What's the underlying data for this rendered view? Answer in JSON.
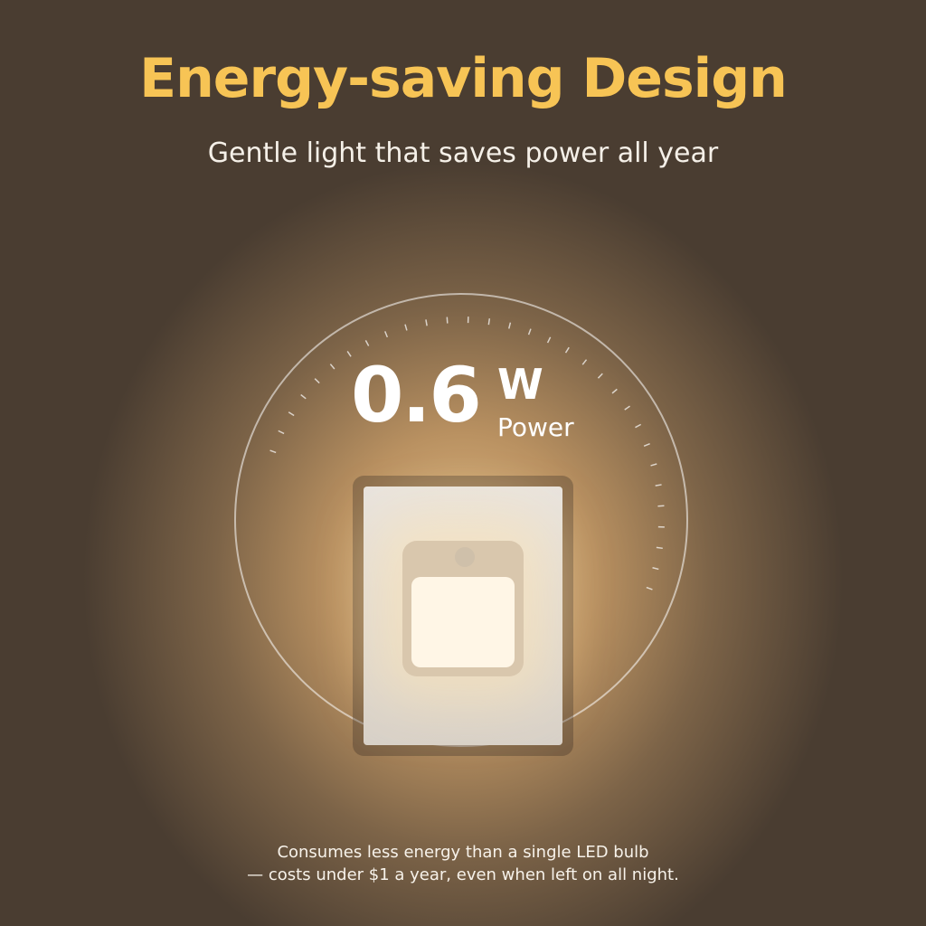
{
  "header": {
    "title": "Energy-saving Design",
    "subtitle": "Gentle light that saves power all year"
  },
  "power": {
    "value": "0.6",
    "unit": "W",
    "label": "Power"
  },
  "footer": {
    "line1": "Consumes less energy than a single LED bulb",
    "line2": "— costs under $1 a year, even when left on all night."
  },
  "colors": {
    "title": "#f7c455",
    "text": "#ffffff"
  }
}
